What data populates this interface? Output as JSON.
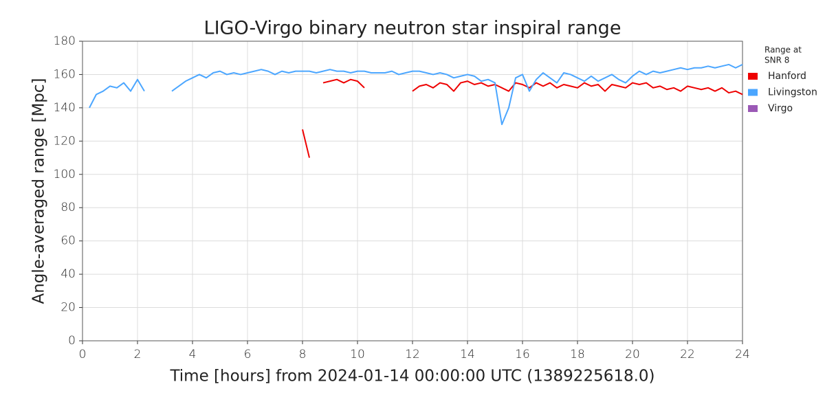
{
  "chart_data": {
    "type": "line",
    "title": "LIGO-Virgo binary neutron star inspiral range",
    "xlabel": "Time [hours] from 2024-01-14 00:00:00 UTC (1389225618.0)",
    "ylabel": "Angle-averaged range [Mpc]",
    "legend_title": [
      "Range at",
      "SNR 8"
    ],
    "legend_position": "outside-right",
    "grid": true,
    "xlim": [
      0,
      24
    ],
    "ylim": [
      0,
      180
    ],
    "xticks": [
      0,
      2,
      4,
      6,
      8,
      10,
      12,
      14,
      16,
      18,
      20,
      22,
      24
    ],
    "yticks": [
      0,
      20,
      40,
      60,
      80,
      100,
      120,
      140,
      160,
      180
    ],
    "x": [
      0,
      0.25,
      0.5,
      0.75,
      1,
      1.25,
      1.5,
      1.75,
      2,
      2.25,
      2.5,
      2.75,
      3,
      3.25,
      3.5,
      3.75,
      4,
      4.25,
      4.5,
      4.75,
      5,
      5.25,
      5.5,
      5.75,
      6,
      6.25,
      6.5,
      6.75,
      7,
      7.25,
      7.5,
      7.75,
      8,
      8.25,
      8.5,
      8.75,
      9,
      9.25,
      9.5,
      9.75,
      10,
      10.25,
      10.5,
      10.75,
      11,
      11.25,
      11.5,
      11.75,
      12,
      12.25,
      12.5,
      12.75,
      13,
      13.25,
      13.5,
      13.75,
      14,
      14.25,
      14.5,
      14.75,
      15,
      15.25,
      15.5,
      15.75,
      16,
      16.25,
      16.5,
      16.75,
      17,
      17.25,
      17.5,
      17.75,
      18,
      18.25,
      18.5,
      18.75,
      19,
      19.25,
      19.5,
      19.75,
      20,
      20.25,
      20.5,
      20.75,
      21,
      21.25,
      21.5,
      21.75,
      22,
      22.25,
      22.5,
      22.75,
      23,
      23.25,
      23.5,
      23.75,
      24
    ],
    "series": [
      {
        "name": "Hanford",
        "color": "#ee0000",
        "values": [
          null,
          null,
          null,
          null,
          null,
          null,
          null,
          null,
          null,
          null,
          null,
          null,
          null,
          null,
          null,
          null,
          null,
          null,
          null,
          null,
          null,
          null,
          null,
          null,
          null,
          null,
          null,
          null,
          null,
          null,
          null,
          null,
          127,
          110,
          null,
          155,
          156,
          157,
          155,
          157,
          156,
          152,
          null,
          null,
          null,
          null,
          null,
          null,
          150,
          153,
          154,
          152,
          155,
          154,
          150,
          155,
          156,
          154,
          155,
          153,
          154,
          152,
          150,
          155,
          154,
          152,
          155,
          153,
          155,
          152,
          154,
          153,
          152,
          155,
          153,
          154,
          150,
          154,
          153,
          152,
          155,
          154,
          155,
          152,
          153,
          151,
          152,
          150,
          153,
          152,
          151,
          152,
          150,
          152,
          149,
          150,
          148
        ]
      },
      {
        "name": "Livingston",
        "color": "#4ba6ff",
        "values": [
          null,
          140,
          148,
          150,
          153,
          152,
          155,
          150,
          157,
          150,
          null,
          null,
          null,
          150,
          153,
          156,
          158,
          160,
          158,
          161,
          162,
          160,
          161,
          160,
          161,
          162,
          163,
          162,
          160,
          162,
          161,
          162,
          162,
          162,
          161,
          162,
          163,
          162,
          162,
          161,
          162,
          162,
          161,
          161,
          161,
          162,
          160,
          161,
          162,
          162,
          161,
          160,
          161,
          160,
          158,
          159,
          160,
          159,
          156,
          157,
          155,
          130,
          140,
          158,
          160,
          150,
          157,
          161,
          158,
          155,
          161,
          160,
          158,
          156,
          159,
          156,
          158,
          160,
          157,
          155,
          159,
          162,
          160,
          162,
          161,
          162,
          163,
          164,
          163,
          164,
          164,
          165,
          164,
          165,
          166,
          164,
          166
        ]
      },
      {
        "name": "Virgo",
        "color": "#9b59b6",
        "values": [
          null,
          null,
          null,
          null,
          null,
          null,
          null,
          null,
          null,
          null,
          null,
          null,
          null,
          null,
          null,
          null,
          null,
          null,
          null,
          null,
          null,
          null,
          null,
          null,
          null,
          null,
          null,
          null,
          null,
          null,
          null,
          null,
          null,
          null,
          null,
          null,
          null,
          null,
          null,
          null,
          null,
          null,
          null,
          null,
          null,
          null,
          null,
          null,
          null,
          null,
          null,
          null,
          null,
          null,
          null,
          null,
          null,
          null,
          null,
          null,
          null,
          null,
          null,
          null,
          null,
          null,
          null,
          null,
          null,
          null,
          null,
          null,
          null,
          null,
          null,
          null,
          null,
          null,
          null,
          null,
          null,
          null,
          null,
          null,
          null,
          null,
          null,
          null,
          null,
          null,
          null,
          null,
          null,
          null,
          null,
          null,
          null
        ]
      }
    ]
  }
}
